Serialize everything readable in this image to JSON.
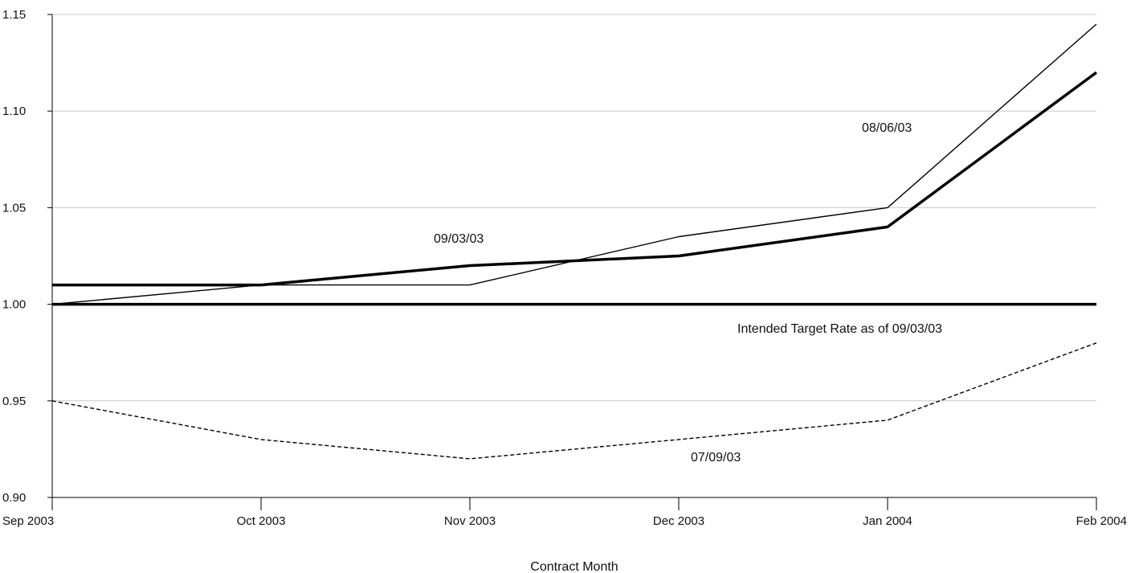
{
  "chart_data": {
    "type": "line",
    "title": "",
    "xlabel": "Contract Month",
    "ylabel": "",
    "categories": [
      "Sep 2003",
      "Oct 2003",
      "Nov 2003",
      "Dec 2003",
      "Jan 2004",
      "Feb 2004"
    ],
    "yticks": [
      "0.90",
      "0.95",
      "1.00",
      "1.05",
      "1.10",
      "1.15"
    ],
    "ylim": [
      0.9,
      1.15
    ],
    "grid": "horizontal",
    "series": [
      {
        "name": "09/03/03",
        "values": [
          1.01,
          1.01,
          1.02,
          1.025,
          1.04,
          1.12
        ],
        "style": "thick",
        "color": "#000000"
      },
      {
        "name": "08/06/03",
        "values": [
          1.0,
          1.01,
          1.01,
          1.035,
          1.05,
          1.145
        ],
        "style": "thin",
        "color": "#000000"
      },
      {
        "name": "07/09/03",
        "values": [
          0.95,
          0.93,
          0.92,
          0.93,
          0.94,
          0.98
        ],
        "style": "dashed",
        "color": "#000000"
      },
      {
        "name": "Intended Target Rate as of 09/03/03",
        "values": [
          1.0,
          1.0,
          1.0,
          1.0,
          1.0,
          1.0
        ],
        "style": "thick",
        "color": "#000000"
      }
    ]
  }
}
